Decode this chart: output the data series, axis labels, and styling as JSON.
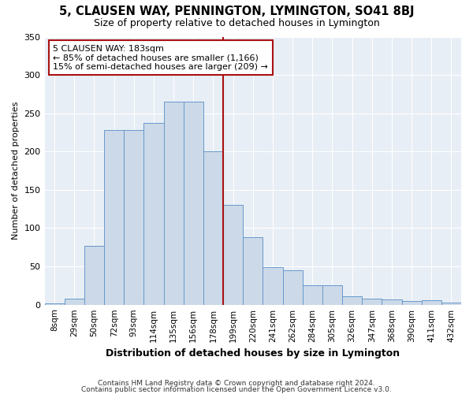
{
  "title": "5, CLAUSEN WAY, PENNINGTON, LYMINGTON, SO41 8BJ",
  "subtitle": "Size of property relative to detached houses in Lymington",
  "xlabel": "Distribution of detached houses by size in Lymington",
  "ylabel": "Number of detached properties",
  "bar_labels": [
    "8sqm",
    "29sqm",
    "50sqm",
    "72sqm",
    "93sqm",
    "114sqm",
    "135sqm",
    "156sqm",
    "178sqm",
    "199sqm",
    "220sqm",
    "241sqm",
    "262sqm",
    "284sqm",
    "305sqm",
    "326sqm",
    "347sqm",
    "368sqm",
    "390sqm",
    "411sqm",
    "432sqm"
  ],
  "bar_values": [
    2,
    8,
    77,
    228,
    228,
    237,
    265,
    265,
    200,
    130,
    88,
    49,
    45,
    25,
    25,
    11,
    8,
    7,
    5,
    6,
    3
  ],
  "bar_color": "#ccd9e8",
  "bar_edge_color": "#6699cc",
  "marker_line_color": "#aa1111",
  "annotation_text": "5 CLAUSEN WAY: 183sqm\n← 85% of detached houses are smaller (1,166)\n15% of semi-detached houses are larger (209) →",
  "annotation_box_color": "#aa1111",
  "ylim": [
    0,
    350
  ],
  "yticks": [
    0,
    50,
    100,
    150,
    200,
    250,
    300,
    350
  ],
  "fig_bg_color": "#ffffff",
  "plot_bg_color": "#e8eef5",
  "grid_color": "#ffffff",
  "footer_line1": "Contains HM Land Registry data © Crown copyright and database right 2024.",
  "footer_line2": "Contains public sector information licensed under the Open Government Licence v3.0."
}
